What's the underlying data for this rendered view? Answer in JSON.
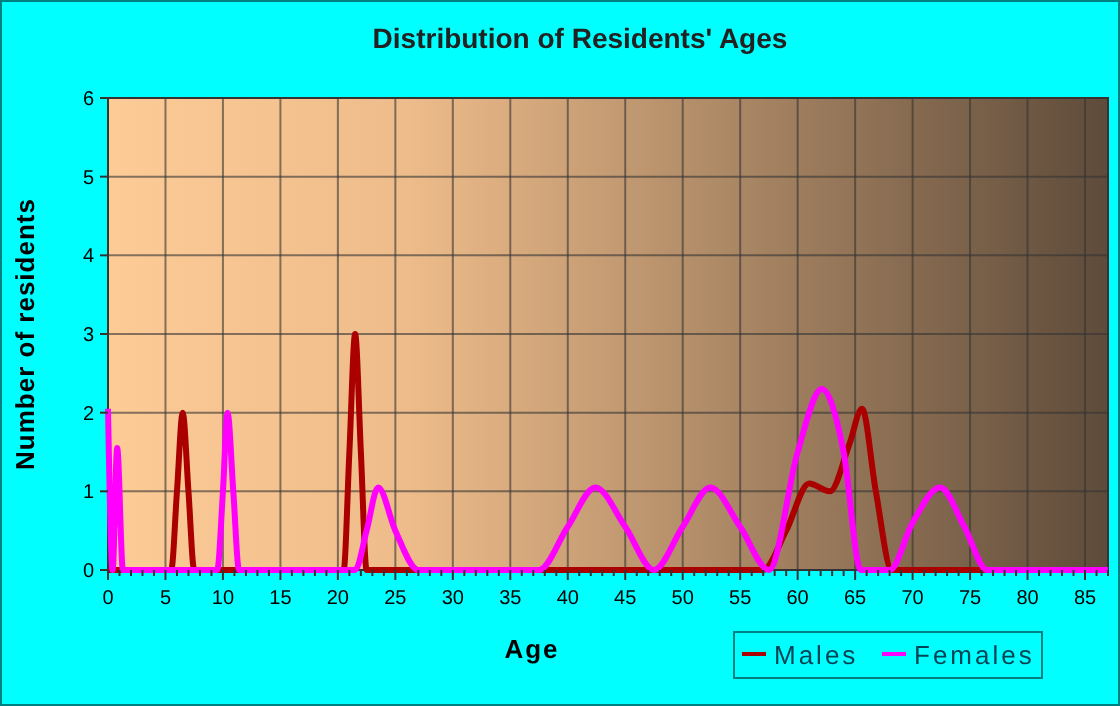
{
  "chart_data": {
    "type": "line",
    "title": "Distribution of Residents' Ages",
    "xlabel": "Age",
    "ylabel": "Number of residents",
    "xlim": [
      0,
      87
    ],
    "ylim": [
      0,
      6
    ],
    "yticks": [
      0,
      1,
      2,
      3,
      4,
      5,
      6
    ],
    "xticks": [
      0,
      {
        "value": 1,
        "label": null
      },
      {
        "value": 2,
        "label": null
      },
      {
        "value": 3,
        "label": null
      },
      {
        "value": 4,
        "label": null
      },
      5,
      {
        "value": 6,
        "label": null
      },
      {
        "value": 7,
        "label": null
      },
      {
        "value": 8,
        "label": null
      },
      {
        "value": 9,
        "label": null
      },
      10,
      {
        "value": 11,
        "label": null
      },
      {
        "value": 12,
        "label": null
      },
      {
        "value": 13,
        "label": null
      },
      {
        "value": 14,
        "label": null
      },
      15,
      {
        "value": 16,
        "label": null
      },
      {
        "value": 17,
        "label": null
      },
      {
        "value": 18,
        "label": null
      },
      {
        "value": 19,
        "label": null
      },
      20,
      {
        "value": 21,
        "label": null
      },
      {
        "value": 22,
        "label": null
      },
      {
        "value": 23,
        "label": null
      },
      {
        "value": 24,
        "label": null
      },
      25,
      {
        "value": 26,
        "label": null
      },
      {
        "value": 27,
        "label": null
      },
      {
        "value": 28,
        "label": null
      },
      {
        "value": 29,
        "label": null
      },
      30,
      {
        "value": 31,
        "label": null
      },
      {
        "value": 32,
        "label": null
      },
      {
        "value": 33,
        "label": null
      },
      {
        "value": 34,
        "label": null
      },
      35,
      {
        "value": 36,
        "label": null
      },
      {
        "value": 37,
        "label": null
      },
      {
        "value": 38,
        "label": null
      },
      {
        "value": 39,
        "label": null
      },
      40,
      {
        "value": 41,
        "label": null
      },
      {
        "value": 42,
        "label": null
      },
      {
        "value": 43,
        "label": null
      },
      {
        "value": 44,
        "label": null
      },
      45,
      {
        "value": 46,
        "label": null
      },
      {
        "value": 47,
        "label": null
      },
      {
        "value": 48,
        "label": null
      },
      {
        "value": 49,
        "label": null
      },
      50,
      {
        "value": 51,
        "label": null
      },
      {
        "value": 52,
        "label": null
      },
      {
        "value": 53,
        "label": null
      },
      {
        "value": 54,
        "label": null
      },
      55,
      {
        "value": 56,
        "label": null
      },
      {
        "value": 57,
        "label": null
      },
      {
        "value": 58,
        "label": null
      },
      {
        "value": 59,
        "label": null
      },
      60,
      {
        "value": 61,
        "label": null
      },
      {
        "value": 62,
        "label": null
      },
      {
        "value": 63,
        "label": null
      },
      {
        "value": 64,
        "label": null
      },
      65,
      {
        "value": 66,
        "label": null
      },
      {
        "value": 67,
        "label": null
      },
      {
        "value": 68,
        "label": null
      },
      {
        "value": 69,
        "label": null
      },
      70,
      {
        "value": 71,
        "label": null
      },
      {
        "value": 72,
        "label": null
      },
      {
        "value": 73,
        "label": null
      },
      {
        "value": 74,
        "label": null
      },
      75,
      {
        "value": 76,
        "label": null
      },
      {
        "value": 77,
        "label": null
      },
      {
        "value": 78,
        "label": null
      },
      {
        "value": 79,
        "label": null
      },
      80,
      {
        "value": 81,
        "label": null
      },
      {
        "value": 82,
        "label": null
      },
      {
        "value": 83,
        "label": null
      },
      {
        "value": 84,
        "label": null
      },
      85,
      {
        "value": 86,
        "label": null
      },
      {
        "value": 87,
        "label": null
      }
    ],
    "grid": true,
    "legend": "bottom right",
    "series": [
      {
        "name": "Males",
        "color": "#aa0000",
        "x": [
          0,
          5.5,
          6,
          6.5,
          7,
          7.5,
          20.5,
          21,
          21.5,
          22,
          22.5,
          57,
          59,
          61,
          62.8,
          64.5,
          65.6,
          66.8,
          68.2,
          87
        ],
        "values": [
          0,
          0,
          1,
          2,
          1,
          0,
          0,
          1.5,
          3,
          1.5,
          0,
          0,
          0.5,
          1.1,
          1,
          1.6,
          2.05,
          1,
          0,
          0
        ]
      },
      {
        "name": "Females",
        "color": "#ff00ff",
        "x": [
          0,
          0.4,
          0.8,
          1.3,
          9.5,
          10,
          10.4,
          10.9,
          11.4,
          21.5,
          22.5,
          23.5,
          25,
          27,
          37.5,
          40,
          42.4,
          45,
          47.5,
          50,
          52.4,
          55,
          57.5,
          60,
          62.1,
          64,
          65.5,
          68,
          70,
          72.4,
          74.5,
          76.5,
          87
        ],
        "values": [
          2.05,
          0,
          1.55,
          0,
          0,
          1,
          2,
          1,
          0,
          0,
          0.5,
          1.05,
          0.5,
          0,
          0,
          0.55,
          1.05,
          0.55,
          0,
          0.55,
          1.05,
          0.55,
          0,
          1.5,
          2.3,
          1.5,
          0,
          0,
          0.6,
          1.05,
          0.55,
          0,
          0
        ]
      }
    ]
  }
}
